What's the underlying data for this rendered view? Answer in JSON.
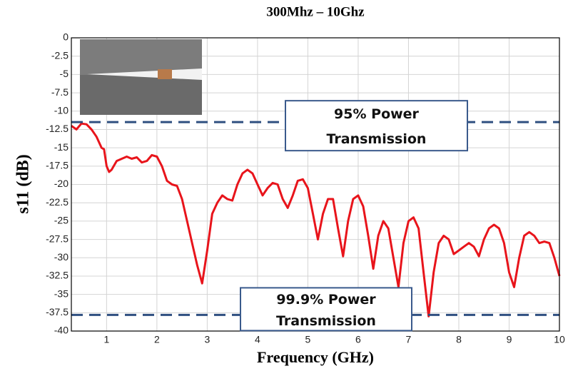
{
  "chart_data": {
    "type": "line",
    "title": "300Mhz – 10Ghz",
    "x_label": "Frequency (GHz)",
    "y_label": "s11 (dB)",
    "color": "#e8141b",
    "grid": true,
    "xlim": [
      0.3,
      10
    ],
    "xticks": [
      1,
      2,
      3,
      4,
      5,
      6,
      7,
      8,
      9,
      10
    ],
    "ylim": [
      -40,
      0
    ],
    "yticks": [
      0,
      -2.5,
      -5,
      -7.5,
      -10,
      -12.5,
      -15,
      -17.5,
      -20,
      -22.5,
      -25,
      -27.5,
      -30,
      -32.5,
      -35,
      -37.5,
      -40
    ],
    "x": [
      0.3,
      0.4,
      0.5,
      0.6,
      0.7,
      0.8,
      0.9,
      0.95,
      1.0,
      1.05,
      1.1,
      1.2,
      1.4,
      1.5,
      1.6,
      1.7,
      1.8,
      1.9,
      2.0,
      2.1,
      2.2,
      2.3,
      2.4,
      2.5,
      2.6,
      2.7,
      2.8,
      2.9,
      3.0,
      3.1,
      3.2,
      3.3,
      3.4,
      3.5,
      3.6,
      3.7,
      3.8,
      3.9,
      4.0,
      4.1,
      4.2,
      4.3,
      4.4,
      4.5,
      4.6,
      4.7,
      4.8,
      4.9,
      5.0,
      5.1,
      5.2,
      5.3,
      5.4,
      5.5,
      5.6,
      5.7,
      5.8,
      5.9,
      6.0,
      6.1,
      6.2,
      6.3,
      6.4,
      6.5,
      6.6,
      6.7,
      6.8,
      6.9,
      7.0,
      7.1,
      7.2,
      7.3,
      7.4,
      7.5,
      7.6,
      7.7,
      7.8,
      7.9,
      8.0,
      8.1,
      8.2,
      8.3,
      8.4,
      8.5,
      8.6,
      8.7,
      8.8,
      8.9,
      9.0,
      9.1,
      9.2,
      9.3,
      9.4,
      9.5,
      9.6,
      9.7,
      9.8,
      9.9,
      10.0
    ],
    "values": [
      -12,
      -12.5,
      -11.7,
      -11.8,
      -12.5,
      -13.5,
      -15,
      -15.2,
      -17.5,
      -18.3,
      -18,
      -16.8,
      -16.2,
      -16.5,
      -16.3,
      -17,
      -16.8,
      -16,
      -16.2,
      -17.5,
      -19.5,
      -20,
      -20.2,
      -22,
      -25,
      -28,
      -31,
      -33.5,
      -29,
      -24,
      -22.5,
      -21.5,
      -22,
      -22.2,
      -20,
      -18.5,
      -18,
      -18.5,
      -20,
      -21.5,
      -20.5,
      -19.8,
      -20,
      -22,
      -23.2,
      -21.5,
      -19.5,
      -19.3,
      -20.5,
      -24,
      -27.5,
      -24,
      -22,
      -22,
      -26,
      -29.8,
      -25,
      -22,
      -21.5,
      -23,
      -27,
      -31.5,
      -27,
      -25,
      -26,
      -30,
      -34,
      -28,
      -25,
      -24.5,
      -26,
      -32,
      -38,
      -32,
      -28,
      -27,
      -27.5,
      -29.5,
      -29,
      -28.5,
      -28,
      -28.5,
      -29.8,
      -27.5,
      -26,
      -25.5,
      -26,
      -28,
      -32,
      -34,
      -30,
      -27,
      -26.5,
      -27,
      -28,
      -27.8,
      -28,
      -30,
      -32.5
    ],
    "reference_lines": [
      {
        "value": -11.5,
        "label": [
          "95% Power",
          "Transmission"
        ]
      },
      {
        "value": -37.8,
        "label": [
          "99.9% Power",
          "Transmission"
        ]
      }
    ]
  }
}
